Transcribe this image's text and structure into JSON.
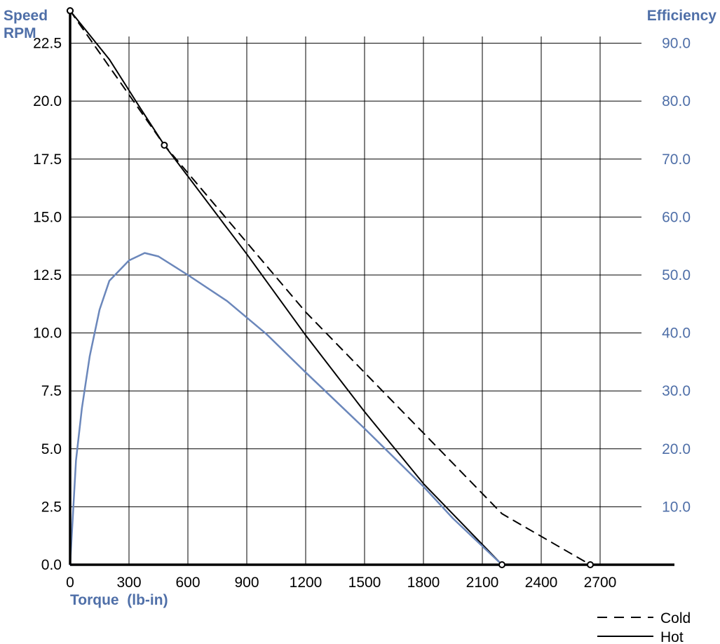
{
  "chart_data": {
    "type": "line",
    "left_axis_label_line1": "Speed",
    "left_axis_label_line2": "RPM",
    "right_axis_label": "Efficiency",
    "xlabel": "Torque  (lb-in)",
    "xlim": [
      0,
      3000
    ],
    "ylim_left": [
      0,
      24
    ],
    "ylim_right": [
      0,
      96
    ],
    "x_ticks": [
      "0",
      "300",
      "600",
      "900",
      "1200",
      "1500",
      "1800",
      "2100",
      "2400",
      "2700"
    ],
    "x_tick_values": [
      0,
      300,
      600,
      900,
      1200,
      1500,
      1800,
      2100,
      2400,
      2700
    ],
    "left_ticks": [
      "0.0",
      "2.5",
      "5.0",
      "7.5",
      "10.0",
      "12.5",
      "15.0",
      "17.5",
      "20.0",
      "22.5"
    ],
    "left_tick_values": [
      0,
      2.5,
      5,
      7.5,
      10,
      12.5,
      15,
      17.5,
      20,
      22.5
    ],
    "right_ticks": [
      "10.0",
      "20.0",
      "30.0",
      "40.0",
      "50.0",
      "60.0",
      "70.0",
      "80.0",
      "90.0"
    ],
    "right_tick_values": [
      10,
      20,
      30,
      40,
      50,
      60,
      70,
      80,
      90
    ],
    "grid": true,
    "legend_position": "bottom-right",
    "series": [
      {
        "name": "Cold",
        "axis": "left",
        "style": "dashed",
        "color": "#000000",
        "points": [
          [
            0,
            23.9
          ],
          [
            480,
            18.1
          ],
          [
            1200,
            10.9
          ],
          [
            2200,
            2.2
          ],
          [
            2650,
            0
          ]
        ],
        "markers": [
          [
            0,
            23.9
          ],
          [
            2650,
            0
          ]
        ]
      },
      {
        "name": "Hot",
        "axis": "left",
        "style": "solid",
        "color": "#000000",
        "points": [
          [
            0,
            23.9
          ],
          [
            200,
            21.8
          ],
          [
            350,
            19.8
          ],
          [
            480,
            18.1
          ],
          [
            900,
            13.4
          ],
          [
            1200,
            9.9
          ],
          [
            1500,
            6.6
          ],
          [
            1800,
            3.5
          ],
          [
            2200,
            0
          ]
        ],
        "markers": [
          [
            0,
            23.9
          ],
          [
            480,
            18.1
          ],
          [
            2200,
            0
          ]
        ]
      },
      {
        "axis": "right",
        "style": "solid",
        "color": "#6b87bb",
        "points": [
          [
            0,
            0
          ],
          [
            30,
            18
          ],
          [
            60,
            27
          ],
          [
            100,
            36
          ],
          [
            150,
            44
          ],
          [
            200,
            49
          ],
          [
            300,
            52.5
          ],
          [
            380,
            53.8
          ],
          [
            450,
            53.2
          ],
          [
            600,
            50
          ],
          [
            800,
            45.5
          ],
          [
            1000,
            39.8
          ],
          [
            1200,
            33.2
          ],
          [
            1500,
            23.5
          ],
          [
            1800,
            13.5
          ],
          [
            1950,
            8
          ],
          [
            2200,
            0
          ]
        ]
      }
    ]
  }
}
